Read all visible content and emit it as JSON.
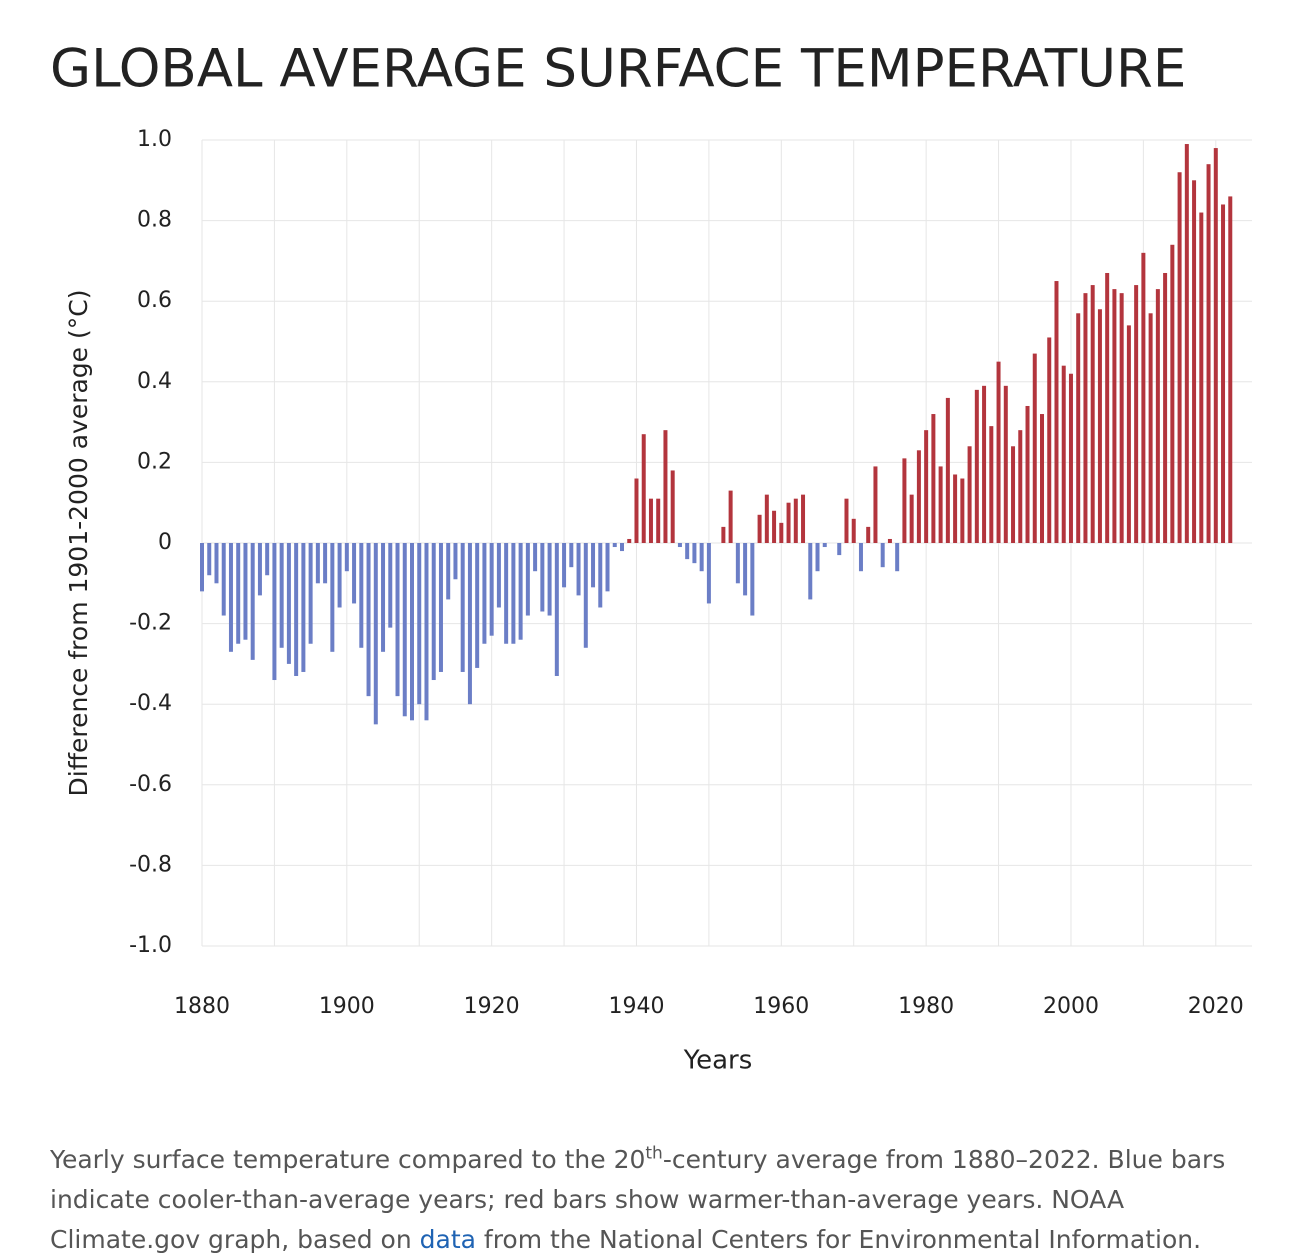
{
  "chart_data": {
    "type": "bar",
    "title": "GLOBAL AVERAGE SURFACE TEMPERATURE",
    "xlabel": "Years",
    "ylabel": "Difference from 1901-2000 average (°C)",
    "x": [
      1880,
      1881,
      1882,
      1883,
      1884,
      1885,
      1886,
      1887,
      1888,
      1889,
      1890,
      1891,
      1892,
      1893,
      1894,
      1895,
      1896,
      1897,
      1898,
      1899,
      1900,
      1901,
      1902,
      1903,
      1904,
      1905,
      1906,
      1907,
      1908,
      1909,
      1910,
      1911,
      1912,
      1913,
      1914,
      1915,
      1916,
      1917,
      1918,
      1919,
      1920,
      1921,
      1922,
      1923,
      1924,
      1925,
      1926,
      1927,
      1928,
      1929,
      1930,
      1931,
      1932,
      1933,
      1934,
      1935,
      1936,
      1937,
      1938,
      1939,
      1940,
      1941,
      1942,
      1943,
      1944,
      1945,
      1946,
      1947,
      1948,
      1949,
      1950,
      1951,
      1952,
      1953,
      1954,
      1955,
      1956,
      1957,
      1958,
      1959,
      1960,
      1961,
      1962,
      1963,
      1964,
      1965,
      1966,
      1967,
      1968,
      1969,
      1970,
      1971,
      1972,
      1973,
      1974,
      1975,
      1976,
      1977,
      1978,
      1979,
      1980,
      1981,
      1982,
      1983,
      1984,
      1985,
      1986,
      1987,
      1988,
      1989,
      1990,
      1991,
      1992,
      1993,
      1994,
      1995,
      1996,
      1997,
      1998,
      1999,
      2000,
      2001,
      2002,
      2003,
      2004,
      2005,
      2006,
      2007,
      2008,
      2009,
      2010,
      2011,
      2012,
      2013,
      2014,
      2015,
      2016,
      2017,
      2018,
      2019,
      2020,
      2021,
      2022
    ],
    "values": [
      -0.12,
      -0.08,
      -0.1,
      -0.18,
      -0.27,
      -0.25,
      -0.24,
      -0.29,
      -0.13,
      -0.08,
      -0.34,
      -0.26,
      -0.3,
      -0.33,
      -0.32,
      -0.25,
      -0.1,
      -0.1,
      -0.27,
      -0.16,
      -0.07,
      -0.15,
      -0.26,
      -0.38,
      -0.45,
      -0.27,
      -0.21,
      -0.38,
      -0.43,
      -0.44,
      -0.4,
      -0.44,
      -0.34,
      -0.32,
      -0.14,
      -0.09,
      -0.32,
      -0.4,
      -0.31,
      -0.25,
      -0.23,
      -0.16,
      -0.25,
      -0.25,
      -0.24,
      -0.18,
      -0.07,
      -0.17,
      -0.18,
      -0.33,
      -0.11,
      -0.06,
      -0.13,
      -0.26,
      -0.11,
      -0.16,
      -0.12,
      -0.01,
      -0.02,
      0.01,
      0.16,
      0.27,
      0.11,
      0.11,
      0.28,
      0.18,
      -0.01,
      -0.04,
      -0.05,
      -0.07,
      -0.15,
      0,
      0.04,
      0.13,
      -0.1,
      -0.13,
      -0.18,
      0.07,
      0.12,
      0.08,
      0.05,
      0.1,
      0.11,
      0.12,
      -0.14,
      -0.07,
      -0.01,
      0,
      -0.03,
      0.11,
      0.06,
      -0.07,
      0.04,
      0.19,
      -0.06,
      0.01,
      -0.07,
      0.21,
      0.12,
      0.23,
      0.28,
      0.32,
      0.19,
      0.36,
      0.17,
      0.16,
      0.24,
      0.38,
      0.39,
      0.29,
      0.45,
      0.39,
      0.24,
      0.28,
      0.34,
      0.47,
      0.32,
      0.51,
      0.65,
      0.44,
      0.42,
      0.57,
      0.62,
      0.64,
      0.58,
      0.67,
      0.63,
      0.62,
      0.54,
      0.64,
      0.72,
      0.57,
      0.63,
      0.67,
      0.74,
      0.92,
      0.99,
      0.9,
      0.82,
      0.94,
      0.98,
      0.84,
      0.86
    ],
    "positive_color": "#b3353d",
    "negative_color": "#6b7ec6",
    "title_color": "#6aa0d6",
    "xlim": [
      1880,
      2025
    ],
    "ylim": [
      -1,
      1
    ],
    "xticks": [
      1880,
      1900,
      1920,
      1940,
      1960,
      1980,
      2000,
      2020
    ],
    "xminorgrid": [
      1890,
      1910,
      1930,
      1950,
      1970,
      1990,
      2010
    ],
    "yticks": [
      {
        "value": -1,
        "label": "-1.0"
      },
      -0.8,
      -0.6,
      -0.4,
      -0.2,
      0,
      0.2,
      0.4,
      0.6,
      0.8,
      {
        "value": 1,
        "label": "1.0"
      }
    ],
    "grid": true
  },
  "caption": {
    "text_1": "Yearly surface temperature compared to the 20",
    "sup": "th",
    "text_2": "-century average from 1880–2022. Blue bars indicate cooler-than-average years; red bars show warmer-than-average years. NOAA Climate.gov graph, based on ",
    "link": "data",
    "text_3": " from the National Centers for Environmental Information."
  }
}
